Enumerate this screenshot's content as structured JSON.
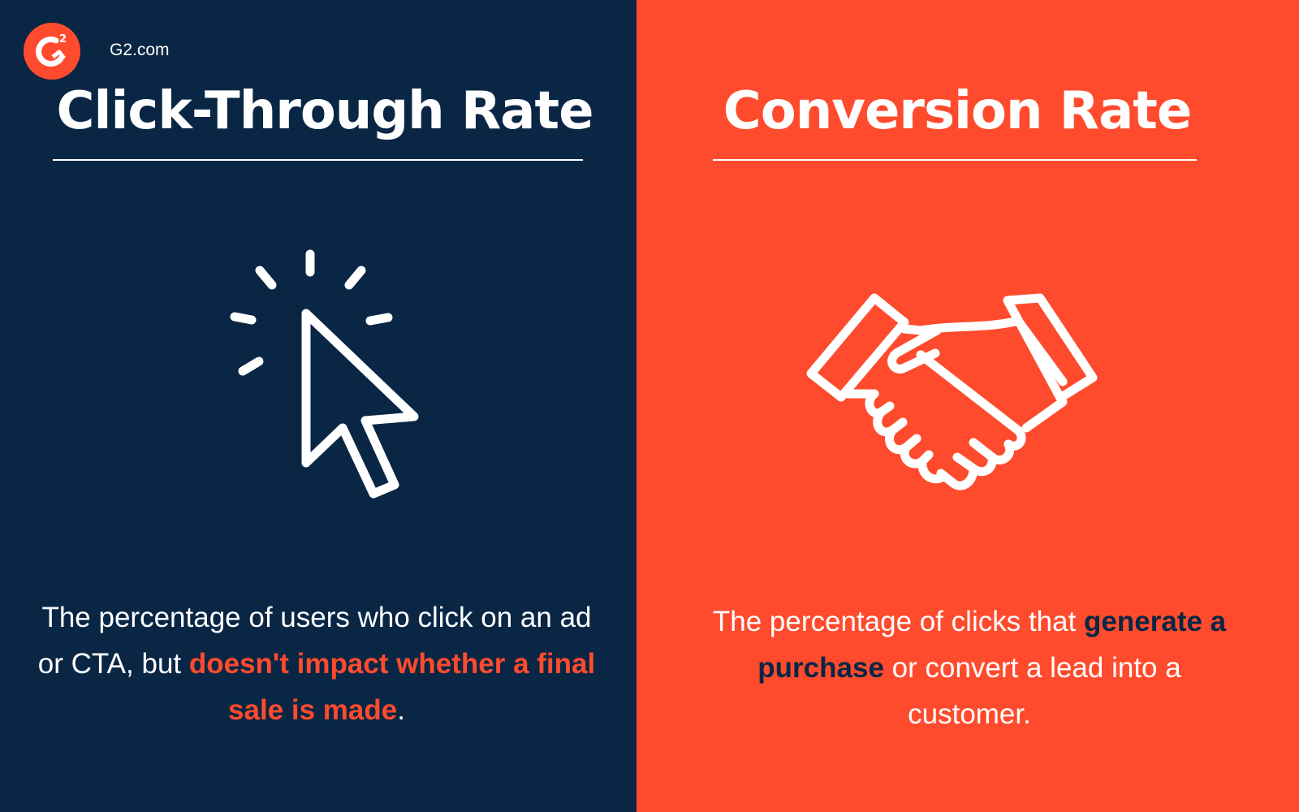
{
  "brand": {
    "logo_text": "G2",
    "site": "G2.com"
  },
  "left": {
    "title": "Click-Through Rate",
    "icon": "cursor-click-icon",
    "body_1": "The percentage of users who click on an ad or CTA, but ",
    "body_highlight": "doesn't impact whether a final sale is made",
    "body_2": "."
  },
  "right": {
    "title": "Conversion Rate",
    "icon": "handshake-icon",
    "body_1": "The percentage of clicks that ",
    "body_highlight": "generate a purchase",
    "body_2": " or convert a lead into a customer."
  },
  "colors": {
    "navy": "#0a2645",
    "orange": "#ff4b2d",
    "white": "#ffffff"
  }
}
